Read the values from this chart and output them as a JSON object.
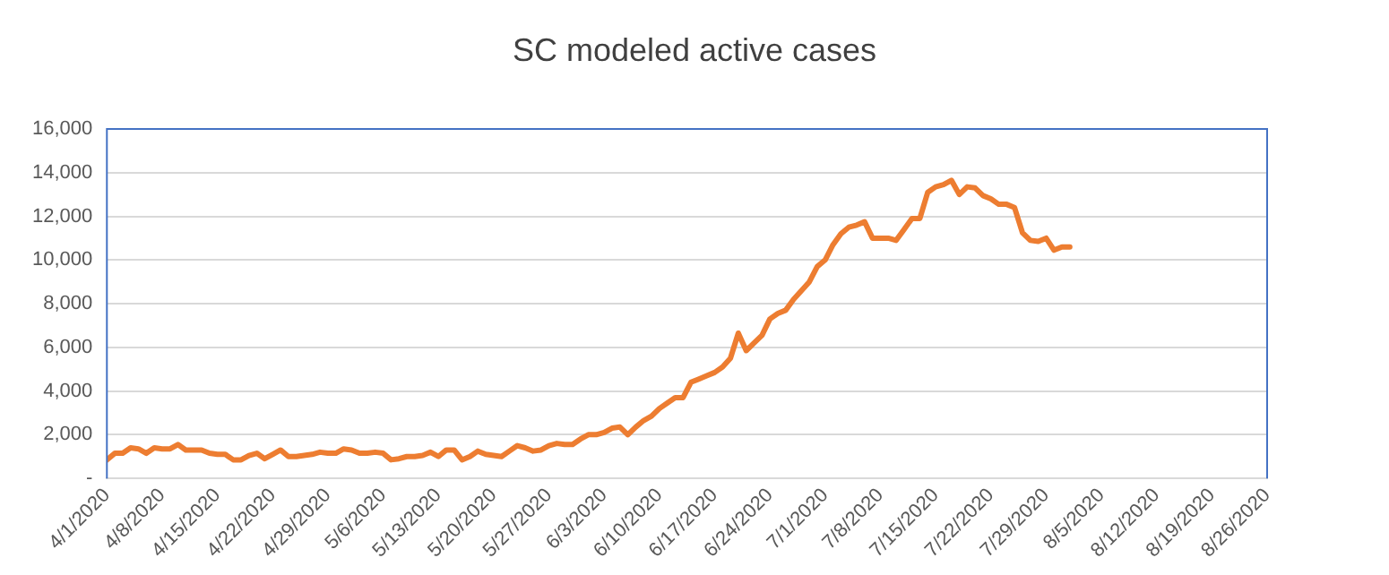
{
  "chart_data": {
    "type": "line",
    "title": "SC modeled active cases",
    "x": [
      "2020-04-01",
      "2020-04-02",
      "2020-04-03",
      "2020-04-04",
      "2020-04-05",
      "2020-04-06",
      "2020-04-07",
      "2020-04-08",
      "2020-04-09",
      "2020-04-10",
      "2020-04-11",
      "2020-04-12",
      "2020-04-13",
      "2020-04-14",
      "2020-04-15",
      "2020-04-16",
      "2020-04-17",
      "2020-04-18",
      "2020-04-19",
      "2020-04-20",
      "2020-04-21",
      "2020-04-22",
      "2020-04-23",
      "2020-04-24",
      "2020-04-25",
      "2020-04-26",
      "2020-04-27",
      "2020-04-28",
      "2020-04-29",
      "2020-04-30",
      "2020-05-01",
      "2020-05-02",
      "2020-05-03",
      "2020-05-04",
      "2020-05-05",
      "2020-05-06",
      "2020-05-07",
      "2020-05-08",
      "2020-05-09",
      "2020-05-10",
      "2020-05-11",
      "2020-05-12",
      "2020-05-13",
      "2020-05-14",
      "2020-05-15",
      "2020-05-16",
      "2020-05-17",
      "2020-05-18",
      "2020-05-19",
      "2020-05-20",
      "2020-05-21",
      "2020-05-22",
      "2020-05-23",
      "2020-05-24",
      "2020-05-25",
      "2020-05-26",
      "2020-05-27",
      "2020-05-28",
      "2020-05-29",
      "2020-05-30",
      "2020-05-31",
      "2020-06-01",
      "2020-06-02",
      "2020-06-03",
      "2020-06-04",
      "2020-06-05",
      "2020-06-06",
      "2020-06-07",
      "2020-06-08",
      "2020-06-09",
      "2020-06-10",
      "2020-06-11",
      "2020-06-12",
      "2020-06-13",
      "2020-06-14",
      "2020-06-15",
      "2020-06-16",
      "2020-06-17",
      "2020-06-18",
      "2020-06-19",
      "2020-06-20",
      "2020-06-21",
      "2020-06-22",
      "2020-06-23",
      "2020-06-24",
      "2020-06-25",
      "2020-06-26",
      "2020-06-27",
      "2020-06-28",
      "2020-06-29",
      "2020-06-30",
      "2020-07-01",
      "2020-07-02",
      "2020-07-03",
      "2020-07-04",
      "2020-07-05",
      "2020-07-06",
      "2020-07-07",
      "2020-07-08",
      "2020-07-09",
      "2020-07-10",
      "2020-07-11",
      "2020-07-12",
      "2020-07-13",
      "2020-07-14",
      "2020-07-15",
      "2020-07-16",
      "2020-07-17",
      "2020-07-18",
      "2020-07-19",
      "2020-07-20",
      "2020-07-21",
      "2020-07-22",
      "2020-07-23",
      "2020-07-24",
      "2020-07-25",
      "2020-07-26",
      "2020-07-27",
      "2020-07-28",
      "2020-07-29",
      "2020-07-30",
      "2020-07-31",
      "2020-08-01"
    ],
    "series": [
      {
        "color": "#ed7d31",
        "values": [
          850,
          1150,
          1150,
          1400,
          1350,
          1150,
          1400,
          1350,
          1350,
          1550,
          1300,
          1300,
          1300,
          1150,
          1100,
          1100,
          850,
          850,
          1050,
          1150,
          900,
          1100,
          1300,
          1000,
          1000,
          1050,
          1100,
          1200,
          1150,
          1150,
          1350,
          1300,
          1150,
          1150,
          1200,
          1150,
          850,
          900,
          1000,
          1000,
          1050,
          1200,
          1000,
          1300,
          1300,
          850,
          1000,
          1250,
          1100,
          1050,
          1000,
          1250,
          1500,
          1400,
          1250,
          1300,
          1500,
          1600,
          1550,
          1550,
          1800,
          2000,
          2000,
          2100,
          2300,
          2350,
          2000,
          2350,
          2650,
          2850,
          3200,
          3450,
          3700,
          3700,
          4400,
          4550,
          4700,
          4850,
          5100,
          5500,
          6650,
          5850,
          6200,
          6550,
          7300,
          7550,
          7700,
          8200,
          8600,
          9000,
          9700,
          10000,
          10700,
          11200,
          11500,
          11600,
          11750,
          11000,
          11000,
          11000,
          10900,
          11400,
          11900,
          11900,
          13100,
          13350,
          13450,
          13650,
          13000,
          13350,
          13300,
          12950,
          12800,
          12550,
          12550,
          12400,
          11250,
          10900,
          10850,
          11000,
          10450,
          10600,
          10600
        ]
      }
    ],
    "xlim": [
      "2020-04-01",
      "2020-08-26"
    ],
    "xticks": [
      {
        "value": "2020-04-01",
        "label": "4/1/2020"
      },
      {
        "value": "2020-04-08",
        "label": "4/8/2020"
      },
      {
        "value": "2020-04-15",
        "label": "4/15/2020"
      },
      {
        "value": "2020-04-22",
        "label": "4/22/2020"
      },
      {
        "value": "2020-04-29",
        "label": "4/29/2020"
      },
      {
        "value": "2020-05-06",
        "label": "5/6/2020"
      },
      {
        "value": "2020-05-13",
        "label": "5/13/2020"
      },
      {
        "value": "2020-05-20",
        "label": "5/20/2020"
      },
      {
        "value": "2020-05-27",
        "label": "5/27/2020"
      },
      {
        "value": "2020-06-03",
        "label": "6/3/2020"
      },
      {
        "value": "2020-06-10",
        "label": "6/10/2020"
      },
      {
        "value": "2020-06-17",
        "label": "6/17/2020"
      },
      {
        "value": "2020-06-24",
        "label": "6/24/2020"
      },
      {
        "value": "2020-07-01",
        "label": "7/1/2020"
      },
      {
        "value": "2020-07-08",
        "label": "7/8/2020"
      },
      {
        "value": "2020-07-15",
        "label": "7/15/2020"
      },
      {
        "value": "2020-07-22",
        "label": "7/22/2020"
      },
      {
        "value": "2020-07-29",
        "label": "7/29/2020"
      },
      {
        "value": "2020-08-05",
        "label": "8/5/2020"
      },
      {
        "value": "2020-08-12",
        "label": "8/12/2020"
      },
      {
        "value": "2020-08-19",
        "label": "8/19/2020"
      },
      {
        "value": "2020-08-26",
        "label": "8/26/2020"
      }
    ],
    "ylim": [
      0,
      16000
    ],
    "yticks": [
      {
        "value": 0,
        "label": "-"
      },
      {
        "value": 2000,
        "label": "2,000"
      },
      {
        "value": 4000,
        "label": "4,000"
      },
      {
        "value": 6000,
        "label": "6,000"
      },
      {
        "value": 8000,
        "label": "8,000"
      },
      {
        "value": 10000,
        "label": "10,000"
      },
      {
        "value": 12000,
        "label": "12,000"
      },
      {
        "value": 14000,
        "label": "14,000"
      },
      {
        "value": 16000,
        "label": "16,000"
      }
    ],
    "grid": "y",
    "legend": false,
    "marker": "none",
    "line_style": "solid"
  }
}
